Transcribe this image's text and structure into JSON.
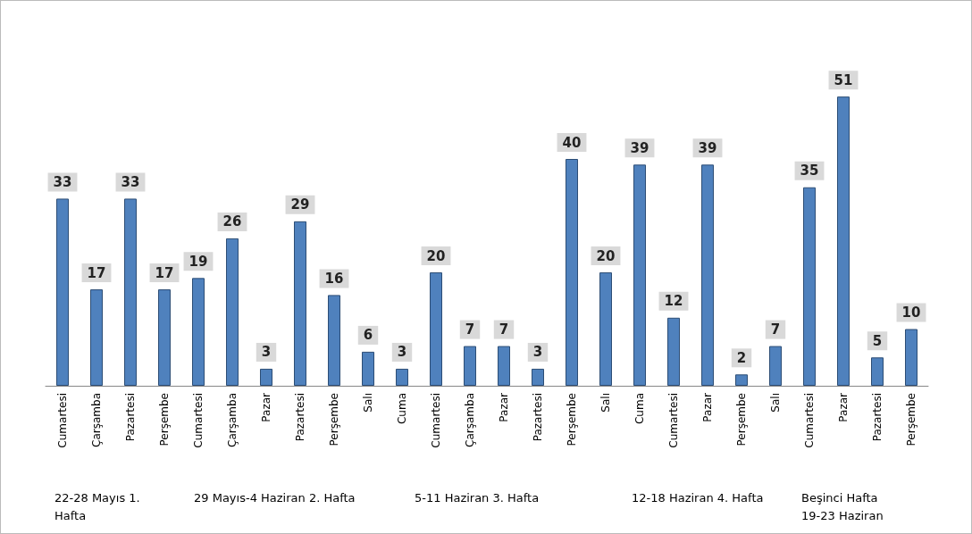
{
  "chart_data": {
    "type": "bar",
    "categories": [
      "Cumartesi",
      "Çarşamba",
      "Pazartesi",
      "Perşembe",
      "Cumartesi",
      "Çarşamba",
      "Pazar",
      "Pazartesi",
      "Perşembe",
      "Salı",
      "Cuma",
      "Cumartesi",
      "Çarşamba",
      "Pazar",
      "Pazartesi",
      "Perşembe",
      "Salı",
      "Cuma",
      "Cumartesi",
      "Pazar",
      "Perşembe",
      "Salı",
      "Cumartesi",
      "Pazar",
      "Pazartesi",
      "Perşembe"
    ],
    "values": [
      33,
      17,
      33,
      17,
      19,
      26,
      3,
      29,
      16,
      6,
      3,
      20,
      7,
      7,
      3,
      40,
      20,
      39,
      12,
      39,
      2,
      7,
      35,
      51,
      5,
      10
    ],
    "color": "#4f81bd",
    "data_labels": true,
    "annotations": [
      "22-28 Mayıs 1. Hafta",
      "29 Mayıs-4 Haziran 2. Hafta",
      "5-11 Haziran 3. Hafta",
      "12-18 Haziran 4. Hafta",
      "Beşinci Hafta 19-23 Haziran"
    ]
  }
}
